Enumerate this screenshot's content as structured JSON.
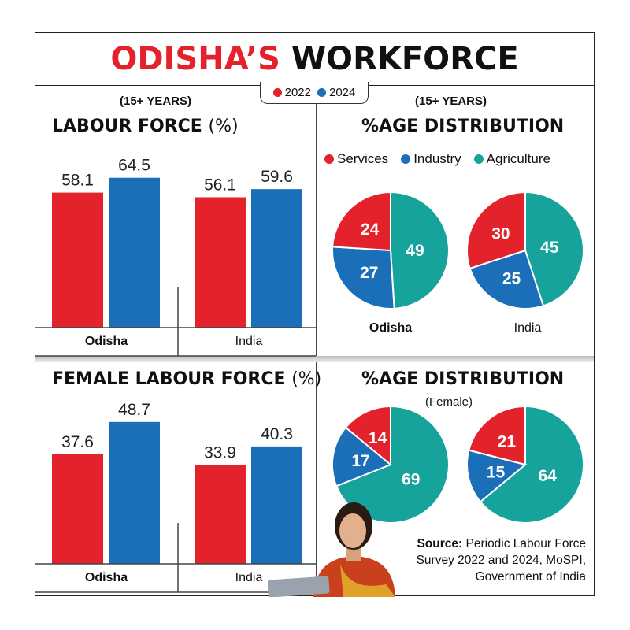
{
  "title": {
    "part1": "ODISHA’S",
    "part2": "WORKFORCE"
  },
  "legend": {
    "items": [
      {
        "label": "2022",
        "color": "#e3222b"
      },
      {
        "label": "2024",
        "color": "#1a6fb8"
      }
    ]
  },
  "subtitles": {
    "left": "(15+ YEARS)",
    "right": "(15+ YEARS)"
  },
  "headings": {
    "labour_force": "LABOUR FORCE",
    "labour_force_unit": "(%)",
    "female_labour_force": "FEMALE LABOUR FORCE",
    "female_labour_force_unit": "(%)",
    "distribution": "%AGE DISTRIBUTION",
    "female_distribution": "%AGE DISTRIBUTION",
    "female_note": "(Female)"
  },
  "pie_legend": [
    {
      "label": "Services",
      "color": "#e3222b"
    },
    {
      "label": "Industry",
      "color": "#1a6fb8"
    },
    {
      "label": "Agriculture",
      "color": "#16a39c"
    }
  ],
  "source": {
    "label": "Source:",
    "text": "Periodic Labour Force Survey 2022 and 2024, MoSPI, Government of India"
  },
  "chart_data": [
    {
      "type": "bar",
      "title": "LABOUR FORCE (%)",
      "categories": [
        "Odisha",
        "India"
      ],
      "series": [
        {
          "name": "2022",
          "values": [
            58.1,
            56.1
          ],
          "color": "#e3222b"
        },
        {
          "name": "2024",
          "values": [
            64.5,
            59.6
          ],
          "color": "#1a6fb8"
        }
      ]
    },
    {
      "type": "bar",
      "title": "FEMALE LABOUR FORCE (%)",
      "categories": [
        "Odisha",
        "India"
      ],
      "series": [
        {
          "name": "2022",
          "values": [
            37.6,
            33.9
          ],
          "color": "#e3222b"
        },
        {
          "name": "2024",
          "values": [
            48.7,
            40.3
          ],
          "color": "#1a6fb8"
        }
      ]
    },
    {
      "type": "pie",
      "title": "%AGE DISTRIBUTION",
      "pies": [
        {
          "label": "Odisha",
          "slices": [
            {
              "name": "Services",
              "value": 24
            },
            {
              "name": "Industry",
              "value": 27
            },
            {
              "name": "Agriculture",
              "value": 49
            }
          ]
        },
        {
          "label": "India",
          "slices": [
            {
              "name": "Services",
              "value": 30
            },
            {
              "name": "Industry",
              "value": 25
            },
            {
              "name": "Agriculture",
              "value": 45
            }
          ]
        }
      ]
    },
    {
      "type": "pie",
      "title": "%AGE DISTRIBUTION (Female)",
      "pies": [
        {
          "label": "",
          "slices": [
            {
              "name": "Services",
              "value": 14
            },
            {
              "name": "Industry",
              "value": 17
            },
            {
              "name": "Agriculture",
              "value": 69
            }
          ]
        },
        {
          "label": "",
          "slices": [
            {
              "name": "Services",
              "value": 21
            },
            {
              "name": "Industry",
              "value": 15
            },
            {
              "name": "Agriculture",
              "value": 64
            }
          ]
        }
      ]
    }
  ]
}
